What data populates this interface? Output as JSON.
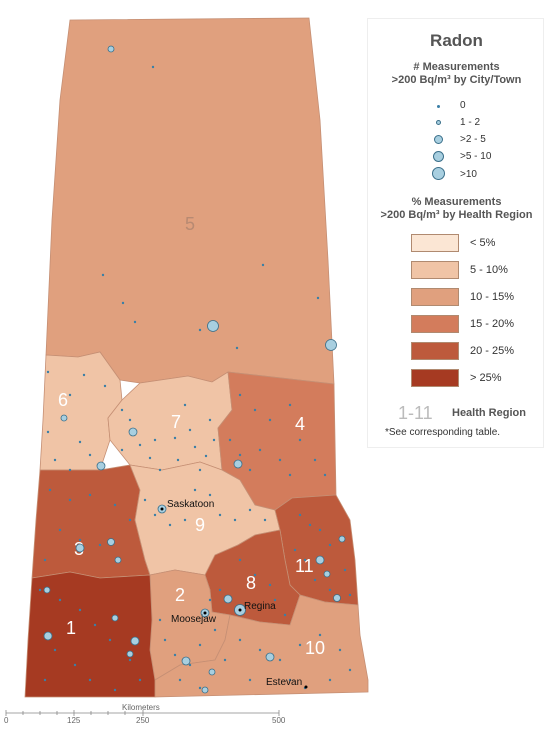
{
  "legend": {
    "title": "Radon",
    "subtitle_points_line1": "# Measurements",
    "subtitle_points_line2": ">200 Bq/m³ by City/Town",
    "point_classes": [
      "0",
      "1 - 2",
      ">2 - 5",
      ">5 - 10",
      ">10"
    ],
    "subtitle_regions_line1": "% Measurements",
    "subtitle_regions_line2": ">200 Bq/m³ by Health Region",
    "region_classes": [
      {
        "label": "< 5%",
        "color": "#fbe6d4"
      },
      {
        "label": "5 - 10%",
        "color": "#f0c4a6"
      },
      {
        "label": "10 - 15%",
        "color": "#e0a07e"
      },
      {
        "label": "15 - 20%",
        "color": "#d37c5c"
      },
      {
        "label": "20 - 25%",
        "color": "#bd5a3c"
      },
      {
        "label": "> 25%",
        "color": "#a63a22"
      }
    ],
    "health_region_range": "1-11",
    "health_region_label": "Health Region",
    "note": "*See corresponding table."
  },
  "regions": [
    {
      "id": "1",
      "class": "> 25%"
    },
    {
      "id": "2",
      "class": "10 - 15%"
    },
    {
      "id": "3",
      "class": "20 - 25%"
    },
    {
      "id": "4",
      "class": "15 - 20%"
    },
    {
      "id": "5",
      "class": "10 - 15%"
    },
    {
      "id": "6",
      "class": "5 - 10%"
    },
    {
      "id": "7",
      "class": "5 - 10%"
    },
    {
      "id": "8",
      "class": "20 - 25%"
    },
    {
      "id": "9",
      "class": "5 - 10%"
    },
    {
      "id": "10",
      "class": "10 - 15%"
    },
    {
      "id": "11",
      "class": "20 - 25%"
    }
  ],
  "cities": {
    "saskatoon": "Saskatoon",
    "regina": "Regina",
    "moose_jaw": "Moosejaw",
    "estevan": "Estevan"
  },
  "scale": {
    "title": "Kilometers",
    "ticks": [
      "0",
      "125",
      "250",
      "500"
    ]
  },
  "colors": {
    "point_fill": "#a8cfe0",
    "point_stroke": "#3a6f8a"
  }
}
